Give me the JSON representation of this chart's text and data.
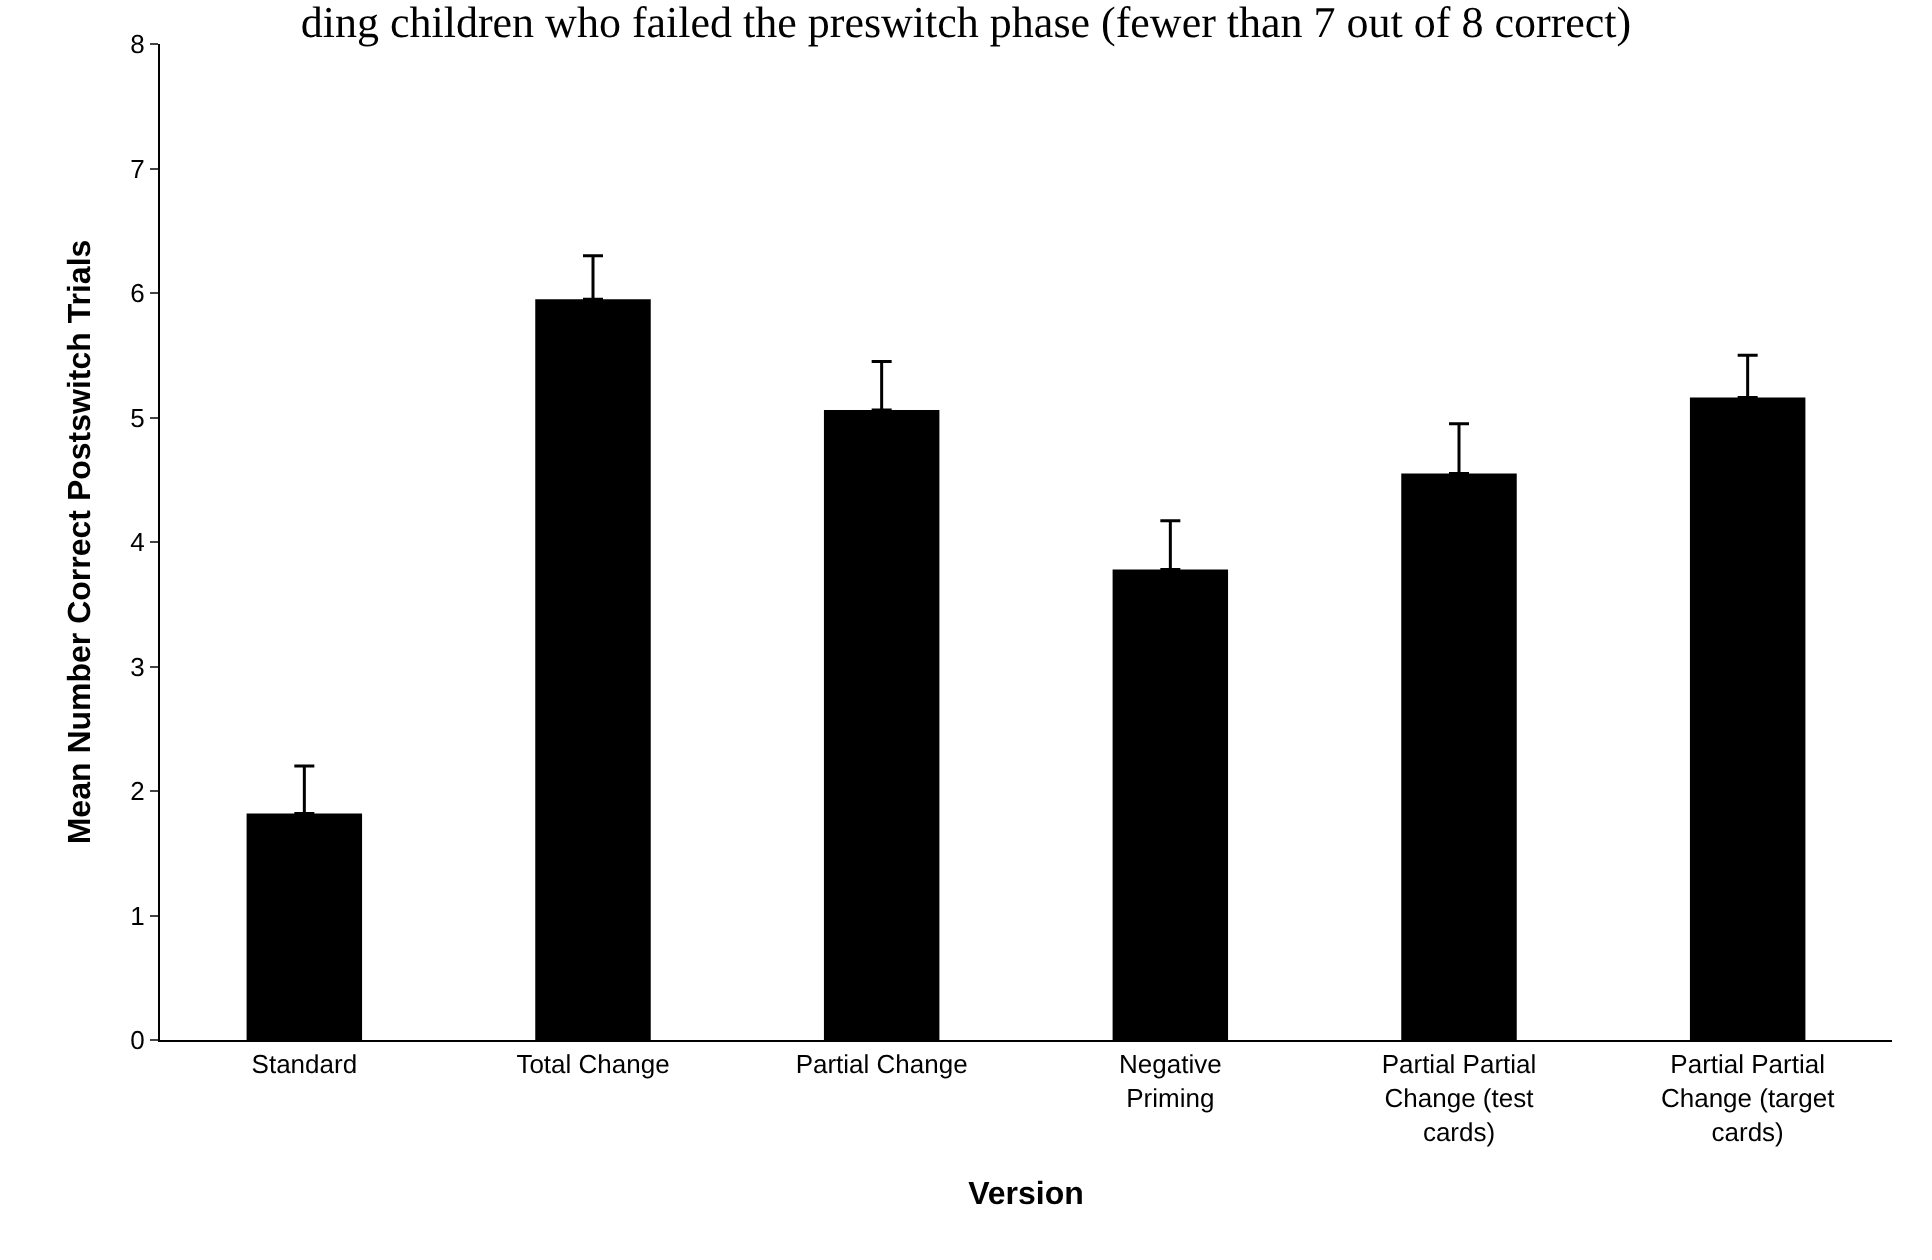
{
  "chart_data": {
    "type": "bar",
    "title": "ding children who failed the preswitch phase (fewer than 7 out of 8 correct)",
    "xlabel": "Version",
    "ylabel": "Mean Number Correct Postswitch Trials",
    "categories": [
      "Standard",
      "Total Change",
      "Partial Change",
      "Negative\nPriming",
      "Partial Partial\nChange (test\ncards)",
      "Partial Partial\nChange (target\ncards)"
    ],
    "values": [
      1.82,
      5.95,
      5.06,
      3.78,
      4.55,
      5.16
    ],
    "errors": [
      [
        1.82,
        2.2
      ],
      [
        5.95,
        6.3
      ],
      [
        5.06,
        5.45
      ],
      [
        3.78,
        4.17
      ],
      [
        4.55,
        4.95
      ],
      [
        5.16,
        5.5
      ]
    ],
    "color": "#000000",
    "ylim": [
      0,
      8
    ],
    "yticks": [
      0,
      1,
      2,
      3,
      4,
      5,
      6,
      7,
      8
    ]
  }
}
